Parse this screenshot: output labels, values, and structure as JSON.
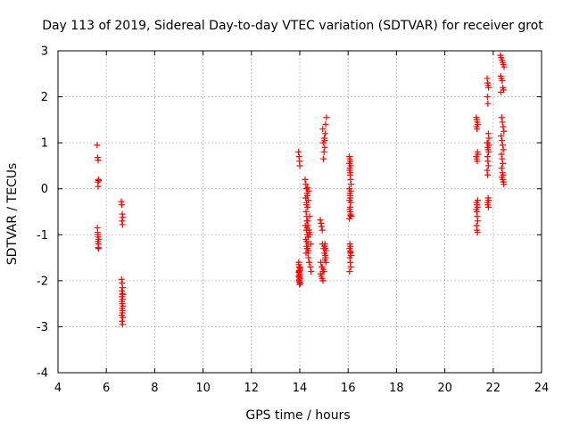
{
  "chart_data": {
    "type": "scatter",
    "title": "Day 113 of 2019, Sidereal Day-to-day VTEC variation (SDTVAR) for receiver grot",
    "xlabel": "GPS time / hours",
    "ylabel": "SDTVAR / TECUs",
    "xlim": [
      4,
      24
    ],
    "ylim": [
      -4,
      3
    ],
    "xticks": [
      4,
      6,
      8,
      10,
      12,
      14,
      16,
      18,
      20,
      22,
      24
    ],
    "yticks": [
      -4,
      -3,
      -2,
      -1,
      0,
      1,
      2,
      3
    ],
    "grid": true,
    "marker": "+",
    "series": [
      {
        "name": "SDTVAR",
        "color": "#ff0000",
        "x": [
          5.62,
          5.64,
          5.66,
          5.67,
          5.65,
          5.66,
          5.68,
          5.63,
          5.64,
          5.66,
          5.68,
          5.65,
          5.67,
          5.66,
          5.68,
          5.65,
          6.62,
          6.64,
          6.66,
          6.68,
          6.65,
          6.67,
          6.63,
          6.65,
          6.67,
          6.64,
          6.66,
          6.68,
          6.65,
          6.67,
          6.64,
          6.66,
          6.68,
          6.65,
          6.67,
          6.66,
          6.64,
          6.68,
          6.65,
          6.67,
          13.95,
          13.97,
          13.99,
          14.0,
          13.96,
          13.98,
          14.01,
          13.97,
          13.99,
          13.95,
          14.0,
          13.97,
          13.99,
          14.02,
          13.96,
          13.98,
          14.0,
          13.97,
          13.99,
          14.01,
          13.96,
          13.98,
          14.22,
          14.25,
          14.27,
          14.3,
          14.24,
          14.28,
          14.32,
          14.26,
          14.29,
          14.33,
          14.23,
          14.27,
          14.31,
          14.35,
          14.25,
          14.29,
          14.34,
          14.28,
          14.32,
          14.36,
          14.26,
          14.3,
          14.38,
          14.4,
          14.42,
          14.45,
          14.3,
          14.33,
          14.36,
          14.39,
          14.44,
          14.47,
          14.31,
          14.35,
          14.28,
          14.32,
          14.37,
          14.41,
          14.29,
          14.34,
          14.85,
          14.88,
          14.9,
          14.93,
          14.87,
          14.91,
          14.95,
          14.86,
          14.89,
          14.92,
          14.96,
          14.98,
          15.0,
          15.03,
          14.97,
          15.01,
          15.05,
          14.94,
          14.99,
          15.02,
          15.06,
          15.08,
          14.93,
          14.97,
          15.0,
          15.04,
          14.95,
          15.07,
          15.1,
          15.04,
          15.06,
          15.08,
          15.02,
          15.05,
          15.07,
          15.03,
          16.05,
          16.07,
          16.09,
          16.11,
          16.06,
          16.08,
          16.1,
          16.12,
          16.05,
          16.07,
          16.09,
          16.11,
          16.06,
          16.08,
          16.1,
          16.12,
          16.05,
          16.07,
          16.09,
          16.06,
          16.08,
          16.1,
          16.12,
          16.07,
          16.09,
          16.11,
          16.06,
          16.08,
          16.1,
          16.05,
          16.07,
          16.09,
          16.11,
          16.08,
          16.06,
          16.1,
          21.3,
          21.32,
          21.34,
          21.36,
          21.31,
          21.33,
          21.35,
          21.37,
          21.3,
          21.32,
          21.34,
          21.36,
          21.31,
          21.33,
          21.35,
          21.3,
          21.32,
          21.34,
          21.36,
          21.31,
          21.33,
          21.35,
          21.75,
          21.77,
          21.79,
          21.81,
          21.76,
          21.78,
          21.8,
          21.82,
          21.75,
          21.77,
          21.79,
          21.81,
          21.76,
          21.78,
          21.8,
          21.75,
          21.77,
          21.79,
          21.81,
          21.76,
          21.78,
          21.8,
          21.82,
          21.77,
          22.3,
          22.33,
          22.36,
          22.39,
          22.42,
          22.45,
          22.31,
          22.34,
          22.37,
          22.4,
          22.43,
          22.32,
          22.35,
          22.38,
          22.41,
          22.44,
          22.33,
          22.36,
          22.39,
          22.42,
          22.34,
          22.37,
          22.4,
          22.35,
          22.38,
          22.41,
          22.36,
          22.39,
          22.42,
          22.44
        ],
        "y": [
          0.95,
          0.68,
          0.62,
          0.2,
          0.15,
          0.05,
          0.18,
          -0.85,
          -0.95,
          -1.05,
          -1.1,
          -1.15,
          -1.2,
          -1.28,
          -1.3,
          -1.0,
          -0.28,
          -0.35,
          -0.55,
          -0.62,
          -0.7,
          -0.78,
          -1.97,
          -2.05,
          -2.15,
          -2.22,
          -2.28,
          -2.3,
          -2.35,
          -2.4,
          -2.45,
          -2.5,
          -2.55,
          -2.6,
          -2.65,
          -2.7,
          -2.75,
          -2.8,
          -2.88,
          -2.95,
          0.8,
          0.7,
          0.6,
          0.5,
          -1.65,
          -1.7,
          -1.75,
          -1.8,
          -1.85,
          -1.9,
          -1.95,
          -2.0,
          -2.03,
          -2.06,
          -1.6,
          -1.78,
          -1.88,
          -1.98,
          -2.08,
          -1.72,
          -1.82,
          -1.92,
          0.2,
          0.1,
          0.0,
          -0.1,
          -0.2,
          -0.3,
          -0.4,
          -0.5,
          -0.6,
          -0.7,
          -0.8,
          -0.9,
          -1.0,
          -1.05,
          -1.1,
          -1.15,
          -1.2,
          -1.25,
          -1.3,
          -1.35,
          -1.4,
          -0.85,
          -0.9,
          -0.95,
          -1.0,
          -1.2,
          -1.3,
          -1.4,
          -1.5,
          -1.6,
          -1.7,
          -1.8,
          -0.15,
          -0.25,
          -0.35,
          0.02,
          -0.05,
          -0.6,
          -0.7,
          -0.8,
          -0.68,
          -0.75,
          -0.82,
          -0.9,
          -1.6,
          -1.7,
          -1.8,
          -1.85,
          -1.9,
          -1.95,
          -2.0,
          0.65,
          0.8,
          0.9,
          1.0,
          1.1,
          1.2,
          -1.2,
          -1.3,
          -1.4,
          -1.5,
          -1.6,
          -1.7,
          -1.75,
          -1.8,
          -1.55,
          1.3,
          1.4,
          1.55,
          -1.2,
          -1.3,
          -1.35,
          -1.25,
          -1.45,
          -1.5,
          1.05,
          0.7,
          0.65,
          0.6,
          0.5,
          0.4,
          0.3,
          0.2,
          0.1,
          0.0,
          -0.1,
          -0.2,
          -0.3,
          -0.45,
          -0.5,
          -0.55,
          -0.6,
          -0.65,
          -1.2,
          -1.25,
          -1.3,
          -1.35,
          -1.4,
          -1.45,
          -1.5,
          -1.6,
          -1.7,
          -1.8,
          -0.4,
          -0.58,
          0.55,
          0.45,
          0.35,
          -0.05,
          -0.15,
          -0.25,
          -1.38,
          1.55,
          1.5,
          1.45,
          1.4,
          1.35,
          1.3,
          0.8,
          0.75,
          0.7,
          0.65,
          0.6,
          -0.25,
          -0.3,
          -0.35,
          -0.4,
          -0.45,
          -0.5,
          -0.6,
          -0.7,
          -0.8,
          -0.9,
          -0.95,
          2.4,
          2.3,
          2.25,
          2.2,
          2.0,
          1.85,
          1.2,
          1.1,
          1.0,
          0.9,
          0.85,
          0.8,
          0.7,
          0.6,
          0.5,
          0.4,
          0.3,
          -0.2,
          -0.25,
          -0.3,
          -0.35,
          -0.4,
          0.95,
          1.0,
          2.9,
          2.85,
          2.8,
          2.75,
          2.7,
          2.65,
          2.45,
          2.4,
          2.35,
          2.2,
          2.15,
          2.1,
          1.55,
          1.45,
          1.35,
          1.25,
          1.15,
          1.05,
          0.95,
          0.85,
          0.75,
          0.65,
          0.55,
          0.45,
          0.35,
          0.3,
          0.25,
          0.2,
          0.15,
          0.1
        ]
      }
    ]
  }
}
